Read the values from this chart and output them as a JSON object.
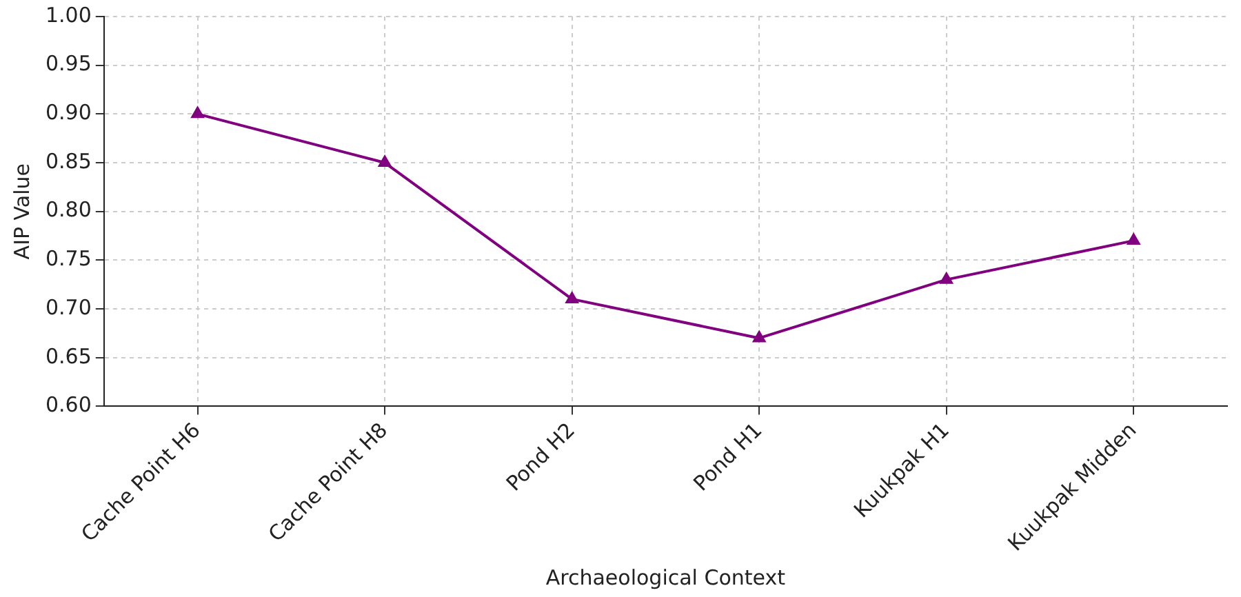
{
  "chart_data": {
    "type": "line",
    "xlabel": "Archaeological Context",
    "ylabel": "AIP Value",
    "categories": [
      "Cache Point H6",
      "Cache Point H8",
      "Pond H2",
      "Pond H1",
      "Kuukpak H1",
      "Kuukpak Midden"
    ],
    "series": [
      {
        "color": "#800080",
        "values": [
          0.9,
          0.85,
          0.71,
          0.67,
          0.73,
          0.77
        ]
      }
    ],
    "ylim": [
      0.6,
      1.0
    ],
    "yticks": [
      {
        "value": 0.6,
        "label": "0.60"
      },
      {
        "value": 0.65,
        "label": "0.65"
      },
      {
        "value": 0.7,
        "label": "0.70"
      },
      {
        "value": 0.75,
        "label": "0.75"
      },
      {
        "value": 0.8,
        "label": "0.80"
      },
      {
        "value": 0.85,
        "label": "0.85"
      },
      {
        "value": 0.9,
        "label": "0.90"
      },
      {
        "value": 0.95,
        "label": "0.95"
      },
      {
        "value": 1.0,
        "label": "1.00"
      }
    ],
    "grid": true,
    "legend": false,
    "marker": "triangle",
    "line_style": "solid"
  }
}
